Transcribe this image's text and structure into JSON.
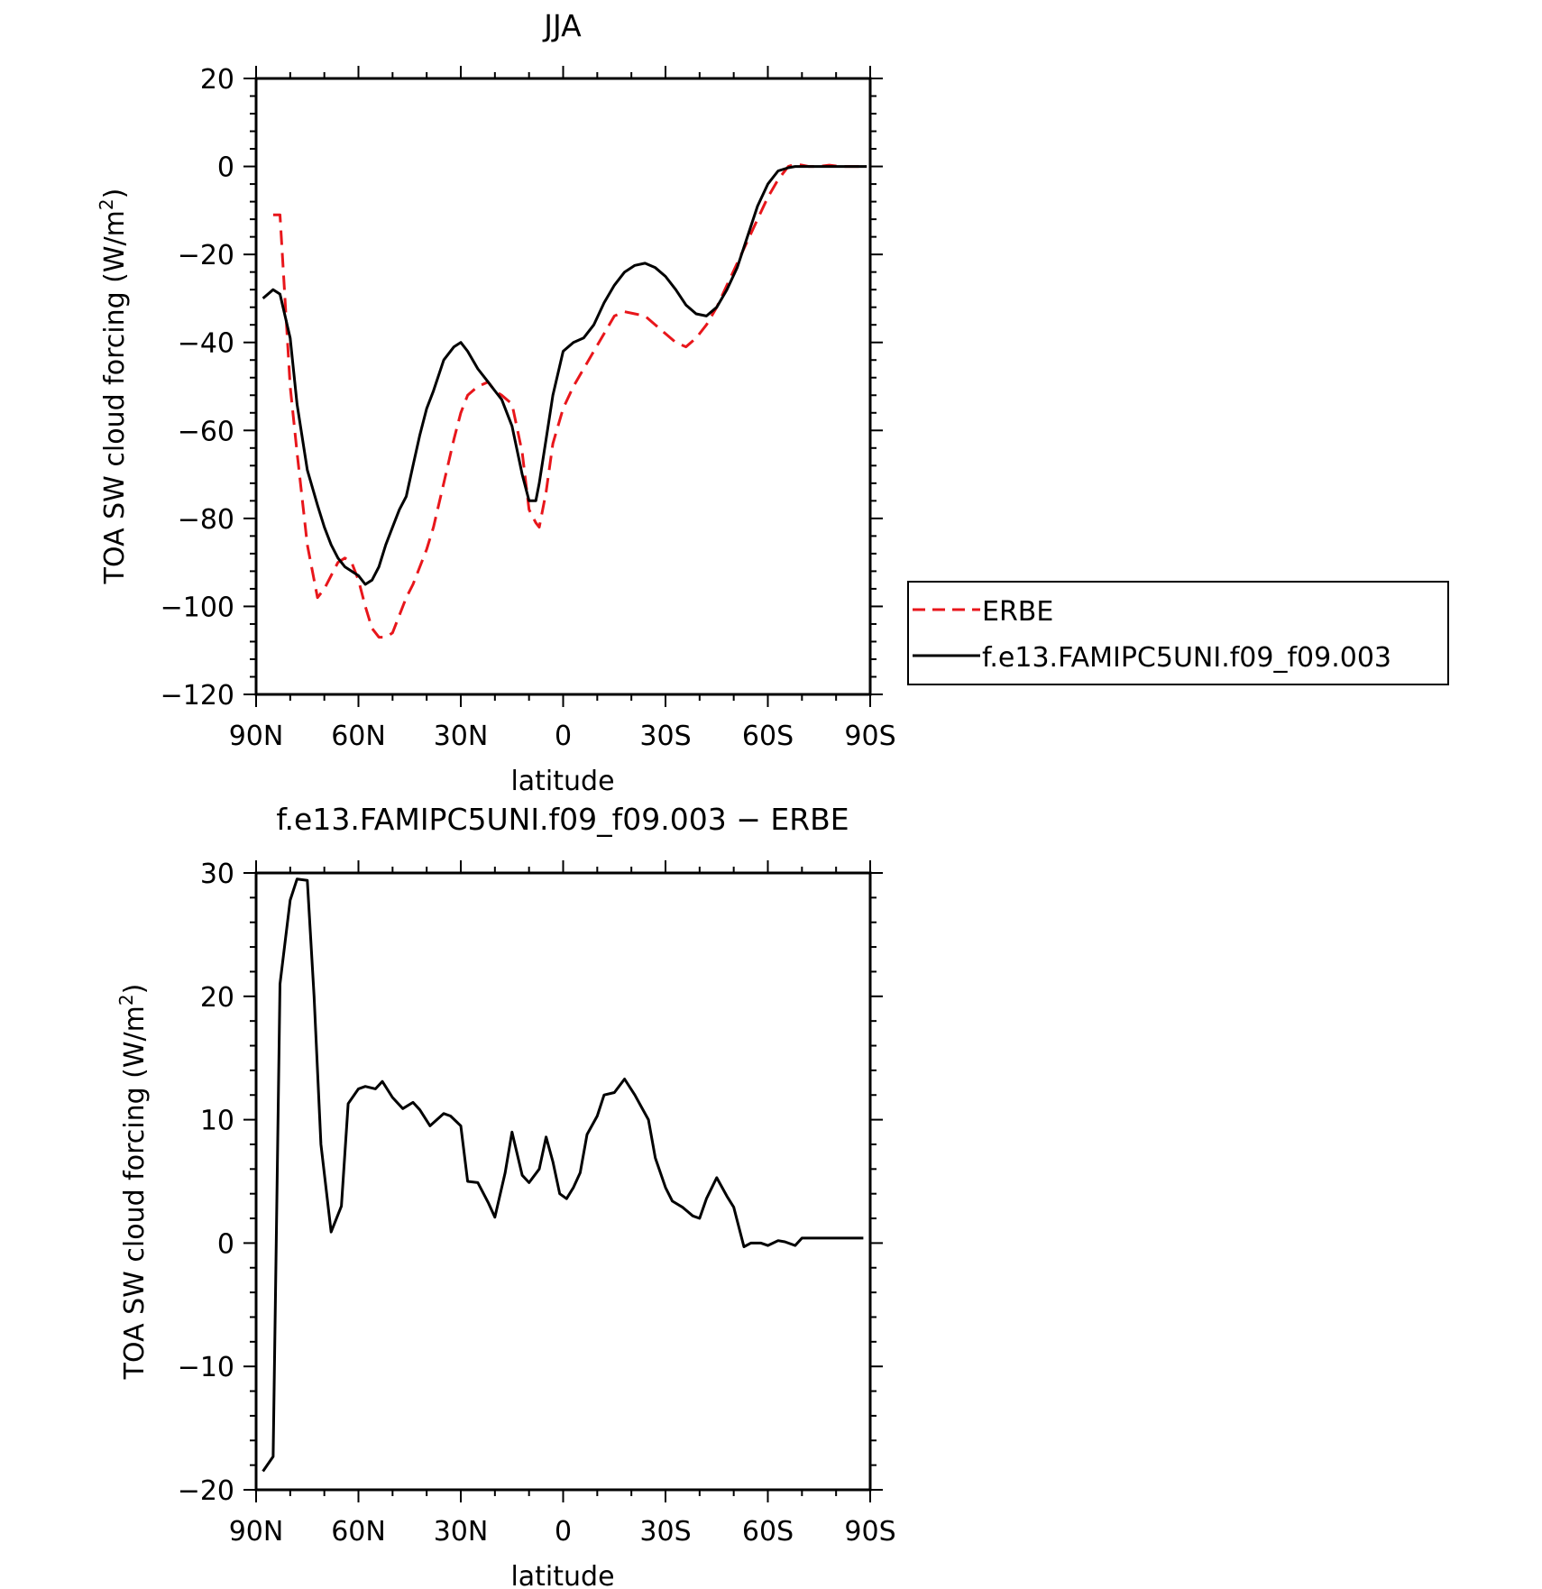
{
  "chart_data": [
    {
      "type": "line",
      "title": "JJA",
      "xlabel": "latitude",
      "ylabel": "TOA SW cloud forcing (W/m",
      "ylabel_sup": "2",
      "ylabel_close": ")",
      "xlim": [
        -90,
        90
      ],
      "ylim": [
        -120,
        20
      ],
      "xticks": [
        -90,
        -60,
        -30,
        0,
        30,
        60,
        90
      ],
      "xtick_labels": [
        "90N",
        "60N",
        "30N",
        "0",
        "30S",
        "60S",
        "90S"
      ],
      "yticks": [
        -120,
        -100,
        -80,
        -60,
        -40,
        -20,
        0,
        20
      ],
      "ytick_labels": [
        "−120",
        "−100",
        "−80",
        "−60",
        "−40",
        "−20",
        "0",
        "20"
      ],
      "grid": false,
      "legend_position": "right",
      "series": [
        {
          "name": "ERBE",
          "color": "#e8161b",
          "dash": "dashed",
          "x": [
            -85,
            -83,
            -80,
            -78,
            -75,
            -72,
            -70,
            -68,
            -66,
            -64,
            -62,
            -60,
            -58,
            -56,
            -54,
            -52,
            -50,
            -48,
            -46,
            -44,
            -42,
            -40,
            -38,
            -35,
            -32,
            -30,
            -28,
            -25,
            -22,
            -20,
            -18,
            -15,
            -12,
            -10,
            -8,
            -7,
            -5,
            -3,
            0,
            3,
            6,
            9,
            12,
            15,
            18,
            21,
            24,
            27,
            30,
            33,
            36,
            39,
            42,
            45,
            48,
            51,
            54,
            57,
            60,
            63,
            66,
            68,
            70,
            72,
            75,
            78,
            81,
            84,
            87,
            89
          ],
          "y": [
            -11,
            -11,
            -50,
            -65,
            -86,
            -98,
            -96,
            -93,
            -90,
            -89,
            -90,
            -94,
            -100,
            -105,
            -107,
            -107,
            -106,
            -102,
            -98,
            -95,
            -91,
            -87,
            -82,
            -72,
            -62,
            -56,
            -52,
            -50,
            -49,
            -51,
            -52,
            -54,
            -65,
            -78,
            -81,
            -82,
            -74,
            -63,
            -55,
            -50,
            -46,
            -42,
            -38,
            -34,
            -33,
            -33.5,
            -34,
            -36,
            -38,
            -40,
            -41,
            -39,
            -36,
            -32,
            -27,
            -22,
            -17,
            -12,
            -7,
            -3,
            0,
            0.5,
            0.3,
            0,
            0,
            0.3,
            0,
            0,
            0,
            -0.5
          ]
        },
        {
          "name": "f.e13.FAMIPC5UNI.f09_f09.003",
          "color": "#000000",
          "dash": "solid",
          "x": [
            -88,
            -85,
            -83,
            -80,
            -78,
            -75,
            -72,
            -70,
            -68,
            -66,
            -64,
            -62,
            -60,
            -58,
            -56,
            -54,
            -52,
            -50,
            -48,
            -46,
            -44,
            -42,
            -40,
            -38,
            -35,
            -32,
            -30,
            -28,
            -25,
            -22,
            -20,
            -18,
            -15,
            -12,
            -10,
            -8,
            -7,
            -5,
            -3,
            0,
            3,
            6,
            9,
            12,
            15,
            18,
            21,
            24,
            27,
            30,
            33,
            36,
            39,
            42,
            45,
            48,
            51,
            54,
            57,
            60,
            63,
            66,
            68,
            70,
            72,
            75,
            78,
            81,
            84,
            87,
            89
          ],
          "y": [
            -30,
            -28,
            -29,
            -39,
            -54,
            -69,
            -77,
            -82,
            -86,
            -89,
            -91,
            -92,
            -93,
            -95,
            -94,
            -91,
            -86,
            -82,
            -78,
            -75,
            -68,
            -61,
            -55,
            -51,
            -44,
            -41,
            -40,
            -42,
            -46,
            -49,
            -51,
            -53,
            -59,
            -70,
            -76,
            -76,
            -72,
            -62,
            -52,
            -42,
            -40,
            -39,
            -36,
            -31,
            -27,
            -24,
            -22.5,
            -22,
            -23,
            -25,
            -28,
            -31.5,
            -33.5,
            -34,
            -32,
            -28,
            -23,
            -16,
            -9,
            -4,
            -1,
            -0.3,
            0,
            0,
            0,
            0,
            0,
            0,
            0,
            0,
            0
          ]
        }
      ]
    },
    {
      "type": "line",
      "title": "f.e13.FAMIPC5UNI.f09_f09.003 − ERBE",
      "xlabel": "latitude",
      "ylabel": "TOA SW cloud forcing (W/m",
      "ylabel_sup": "2",
      "ylabel_close": ")",
      "xlim": [
        -90,
        90
      ],
      "ylim": [
        -20,
        30
      ],
      "xticks": [
        -90,
        -60,
        -30,
        0,
        30,
        60,
        90
      ],
      "xtick_labels": [
        "90N",
        "60N",
        "30N",
        "0",
        "30S",
        "60S",
        "90S"
      ],
      "yticks": [
        -20,
        -10,
        0,
        10,
        20,
        30
      ],
      "ytick_labels": [
        "−20",
        "−10",
        "0",
        "10",
        "20",
        "30"
      ],
      "grid": false,
      "series": [
        {
          "color": "#000000",
          "dash": "solid",
          "x": [
            -88,
            -85,
            -83,
            -80,
            -78,
            -75,
            -73,
            -71,
            -68,
            -65,
            -63,
            -60,
            -58,
            -55,
            -53,
            -50,
            -47,
            -44,
            -42,
            -39,
            -35,
            -33,
            -30,
            -28,
            -25,
            -22,
            -20,
            -17,
            -15,
            -12,
            -10,
            -7,
            -5,
            -3,
            -1,
            1,
            3,
            5,
            7,
            10,
            12,
            15,
            18,
            21,
            23,
            25,
            27,
            30,
            32,
            35,
            38,
            40,
            42,
            45,
            48,
            50,
            53,
            55,
            58,
            60,
            63,
            65,
            68,
            70,
            72,
            75,
            78,
            80,
            83,
            85,
            88
          ],
          "y": [
            -18.5,
            -17.3,
            21.0,
            27.8,
            29.5,
            29.4,
            20.0,
            8.0,
            0.9,
            3.0,
            11.3,
            12.5,
            12.7,
            12.5,
            13.1,
            11.8,
            10.9,
            11.4,
            10.8,
            9.5,
            10.5,
            10.3,
            9.5,
            5.0,
            4.9,
            3.3,
            2.1,
            5.7,
            9.0,
            5.5,
            4.9,
            6.0,
            8.6,
            6.6,
            4.0,
            3.6,
            4.5,
            5.7,
            8.8,
            10.3,
            12.0,
            12.2,
            13.3,
            12.0,
            11.0,
            10.0,
            6.9,
            4.5,
            3.4,
            2.9,
            2.2,
            2.0,
            3.6,
            5.3,
            3.8,
            2.9,
            -0.3,
            0.0,
            0.0,
            -0.2,
            0.2,
            0.1,
            -0.2,
            0.4,
            0.4,
            0.4,
            0.4,
            0.4,
            0.4,
            0.4,
            0.4
          ]
        }
      ]
    }
  ]
}
